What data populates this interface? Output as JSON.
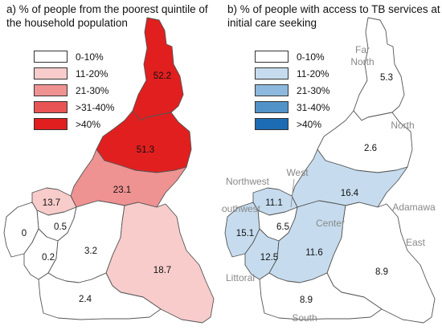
{
  "panel_a": {
    "title": "a) % of people from the poorest quintile of the household population",
    "legend": [
      {
        "label": "0-10%",
        "color": "#ffffff"
      },
      {
        "label": "11-20%",
        "color": "#f7cccb"
      },
      {
        "label": "21-30%",
        "color": "#ef9292"
      },
      {
        "label": ">31-40%",
        "color": "#e85454"
      },
      {
        "label": ">40%",
        "color": "#e11f1f"
      }
    ],
    "regions": {
      "far_north": {
        "value": "52.2",
        "color": "#e11f1f"
      },
      "north": {
        "value": "51.3",
        "color": "#e11f1f"
      },
      "adamawa": {
        "value": "23.1",
        "color": "#ef9292"
      },
      "northwest": {
        "value": "13.7",
        "color": "#f7cccb"
      },
      "west": {
        "value": "0.5",
        "color": "#ffffff"
      },
      "southwest": {
        "value": "0",
        "color": "#ffffff"
      },
      "littoral": {
        "value": "0.2",
        "color": "#ffffff"
      },
      "center": {
        "value": "3.2",
        "color": "#ffffff"
      },
      "east": {
        "value": "18.7",
        "color": "#f7cccb"
      },
      "south": {
        "value": "2.4",
        "color": "#ffffff"
      }
    }
  },
  "panel_b": {
    "title": "b) % of people with access to TB services at initial care seeking",
    "legend": [
      {
        "label": "0-10%",
        "color": "#ffffff"
      },
      {
        "label": "11-20%",
        "color": "#c6dcee"
      },
      {
        "label": "21-30%",
        "color": "#8db9de"
      },
      {
        "label": "31-40%",
        "color": "#5192c8"
      },
      {
        "label": ">40%",
        "color": "#1c6cb4"
      }
    ],
    "regions": {
      "far_north": {
        "name": "Far North",
        "value": "5.3",
        "color": "#ffffff"
      },
      "north": {
        "name": "North",
        "value": "2.6",
        "color": "#ffffff"
      },
      "adamawa": {
        "name": "Adamawa",
        "value": "16.4",
        "color": "#c6dcee"
      },
      "northwest": {
        "name": "Northwest",
        "value": "11.1",
        "color": "#c6dcee"
      },
      "west": {
        "name": "West",
        "value": "6.5",
        "color": "#ffffff"
      },
      "southwest": {
        "name": "Southwest",
        "value": "15.1",
        "color": "#c6dcee"
      },
      "littoral": {
        "name": "Littoral",
        "value": "12.5",
        "color": "#c6dcee"
      },
      "center": {
        "name": "Center",
        "value": "11.6",
        "color": "#c6dcee"
      },
      "east": {
        "name": "East",
        "value": "8.9",
        "color": "#ffffff"
      },
      "south": {
        "name": "South",
        "value": "8.9",
        "color": "#ffffff"
      }
    }
  }
}
